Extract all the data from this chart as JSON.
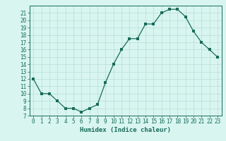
{
  "x": [
    0,
    1,
    2,
    3,
    4,
    5,
    6,
    7,
    8,
    9,
    10,
    11,
    12,
    13,
    14,
    15,
    16,
    17,
    18,
    19,
    20,
    21,
    22,
    23
  ],
  "y": [
    12,
    10,
    10,
    9,
    8,
    8,
    7.5,
    8,
    8.5,
    11.5,
    14,
    16,
    17.5,
    17.5,
    19.5,
    19.5,
    21,
    21.5,
    21.5,
    20.5,
    18.5,
    17,
    16,
    15
  ],
  "line_color": "#1a6b5a",
  "marker_color": "#1a6b5a",
  "bg_color": "#d8f5f0",
  "grid_color": "#b8ddd6",
  "xlabel": "Humidex (Indice chaleur)",
  "xlim": [
    -0.5,
    23.5
  ],
  "ylim": [
    7,
    22
  ],
  "yticks": [
    7,
    8,
    9,
    10,
    11,
    12,
    13,
    14,
    15,
    16,
    17,
    18,
    19,
    20,
    21
  ],
  "xticks": [
    0,
    1,
    2,
    3,
    4,
    5,
    6,
    7,
    8,
    9,
    10,
    11,
    12,
    13,
    14,
    15,
    16,
    17,
    18,
    19,
    20,
    21,
    22,
    23
  ],
  "tick_label_fontsize": 5.5,
  "xlabel_fontsize": 6.5,
  "marker_size": 2.5,
  "linewidth": 0.9
}
